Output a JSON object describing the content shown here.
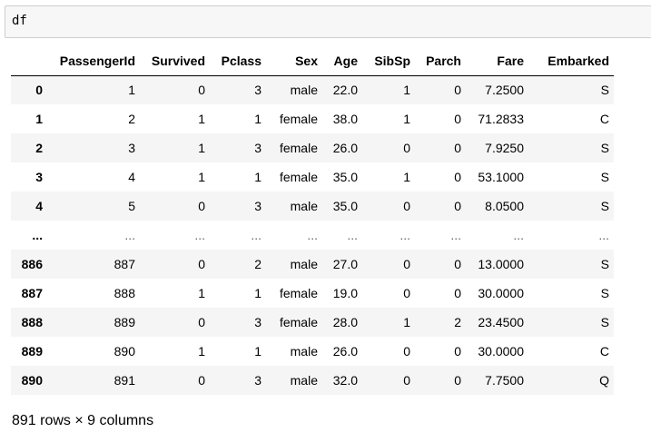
{
  "cell": {
    "code": "df"
  },
  "table": {
    "index_header": "",
    "columns": [
      "PassengerId",
      "Survived",
      "Pclass",
      "Sex",
      "Age",
      "SibSp",
      "Parch",
      "Fare",
      "Embarked"
    ],
    "rows": [
      {
        "index": "0",
        "values": [
          "1",
          "0",
          "3",
          "male",
          "22.0",
          "1",
          "0",
          "7.2500",
          "S"
        ]
      },
      {
        "index": "1",
        "values": [
          "2",
          "1",
          "1",
          "female",
          "38.0",
          "1",
          "0",
          "71.2833",
          "C"
        ]
      },
      {
        "index": "2",
        "values": [
          "3",
          "1",
          "3",
          "female",
          "26.0",
          "0",
          "0",
          "7.9250",
          "S"
        ]
      },
      {
        "index": "3",
        "values": [
          "4",
          "1",
          "1",
          "female",
          "35.0",
          "1",
          "0",
          "53.1000",
          "S"
        ]
      },
      {
        "index": "4",
        "values": [
          "5",
          "0",
          "3",
          "male",
          "35.0",
          "0",
          "0",
          "8.0500",
          "S"
        ]
      },
      {
        "index": "...",
        "values": [
          "...",
          "...",
          "...",
          "...",
          "...",
          "...",
          "...",
          "...",
          "..."
        ]
      },
      {
        "index": "886",
        "values": [
          "887",
          "0",
          "2",
          "male",
          "27.0",
          "0",
          "0",
          "13.0000",
          "S"
        ]
      },
      {
        "index": "887",
        "values": [
          "888",
          "1",
          "1",
          "female",
          "19.0",
          "0",
          "0",
          "30.0000",
          "S"
        ]
      },
      {
        "index": "888",
        "values": [
          "889",
          "0",
          "3",
          "female",
          "28.0",
          "1",
          "2",
          "23.4500",
          "S"
        ]
      },
      {
        "index": "889",
        "values": [
          "890",
          "1",
          "1",
          "male",
          "26.0",
          "0",
          "0",
          "30.0000",
          "C"
        ]
      },
      {
        "index": "890",
        "values": [
          "891",
          "0",
          "3",
          "male",
          "32.0",
          "0",
          "0",
          "7.7500",
          "Q"
        ]
      }
    ]
  },
  "footer": {
    "shape_text": "891 rows × 9 columns"
  }
}
